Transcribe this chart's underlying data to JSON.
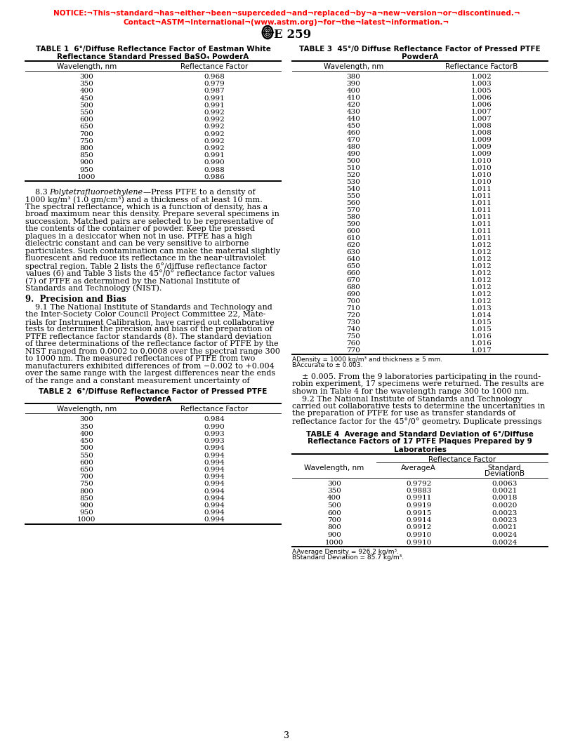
{
  "notice_line1": "NOTICE:¬This¬standard¬has¬either¬been¬superceded¬and¬replaced¬by¬a¬new¬version¬or¬discontinued.¬",
  "notice_line2": "Contact¬ASTM¬International¬(www.astm.org)¬for¬the¬latest¬information.¬",
  "header": "E 259",
  "page_number": "3",
  "table1_title_line1": "TABLE 1  6°/Diffuse Reflectance Factor of Eastman White",
  "table1_title_line2": "Reflectance Standard Pressed BaSO₄ PowderA",
  "table1_col1": "Wavelength, nm",
  "table1_col2": "Reflectance Factor",
  "table1_data": [
    [
      300,
      "0.968"
    ],
    [
      350,
      "0.979"
    ],
    [
      400,
      "0.987"
    ],
    [
      450,
      "0.991"
    ],
    [
      500,
      "0.991"
    ],
    [
      550,
      "0.992"
    ],
    [
      600,
      "0.992"
    ],
    [
      650,
      "0.992"
    ],
    [
      700,
      "0.992"
    ],
    [
      750,
      "0.992"
    ],
    [
      800,
      "0.992"
    ],
    [
      850,
      "0.991"
    ],
    [
      900,
      "0.990"
    ],
    [
      950,
      "0.988"
    ],
    [
      1000,
      "0.986"
    ]
  ],
  "table2_title_line1": "TABLE 2  6°/Diffuse Reflectance Factor of Pressed PTFE",
  "table2_title_line2": "PowderA",
  "table2_col1": "Wavelength, nm",
  "table2_col2": "Reflectance Factor",
  "table2_data": [
    [
      300,
      "0.984"
    ],
    [
      350,
      "0.990"
    ],
    [
      400,
      "0.993"
    ],
    [
      450,
      "0.993"
    ],
    [
      500,
      "0.994"
    ],
    [
      550,
      "0.994"
    ],
    [
      600,
      "0.994"
    ],
    [
      650,
      "0.994"
    ],
    [
      700,
      "0.994"
    ],
    [
      750,
      "0.994"
    ],
    [
      800,
      "0.994"
    ],
    [
      850,
      "0.994"
    ],
    [
      900,
      "0.994"
    ],
    [
      950,
      "0.994"
    ],
    [
      1000,
      "0.994"
    ]
  ],
  "table3_title_line1": "TABLE 3  45°/0 Diffuse Reflectance Factor of Pressed PTFE",
  "table3_title_line2": "PowderA",
  "table3_col1": "Wavelength, nm",
  "table3_col2": "Reflectance FactorB",
  "table3_data": [
    [
      380,
      "1.002"
    ],
    [
      390,
      "1.003"
    ],
    [
      400,
      "1.005"
    ],
    [
      410,
      "1.006"
    ],
    [
      420,
      "1.006"
    ],
    [
      430,
      "1.007"
    ],
    [
      440,
      "1.007"
    ],
    [
      450,
      "1.008"
    ],
    [
      460,
      "1.008"
    ],
    [
      470,
      "1.009"
    ],
    [
      480,
      "1.009"
    ],
    [
      490,
      "1.009"
    ],
    [
      500,
      "1.010"
    ],
    [
      510,
      "1.010"
    ],
    [
      520,
      "1.010"
    ],
    [
      530,
      "1.010"
    ],
    [
      540,
      "1.011"
    ],
    [
      550,
      "1.011"
    ],
    [
      560,
      "1.011"
    ],
    [
      570,
      "1.011"
    ],
    [
      580,
      "1.011"
    ],
    [
      590,
      "1.011"
    ],
    [
      600,
      "1.011"
    ],
    [
      610,
      "1.011"
    ],
    [
      620,
      "1.012"
    ],
    [
      630,
      "1.012"
    ],
    [
      640,
      "1.012"
    ],
    [
      650,
      "1.012"
    ],
    [
      660,
      "1.012"
    ],
    [
      670,
      "1.012"
    ],
    [
      680,
      "1.012"
    ],
    [
      690,
      "1.012"
    ],
    [
      700,
      "1.012"
    ],
    [
      710,
      "1.013"
    ],
    [
      720,
      "1.014"
    ],
    [
      730,
      "1.015"
    ],
    [
      740,
      "1.015"
    ],
    [
      750,
      "1.016"
    ],
    [
      760,
      "1.016"
    ],
    [
      770,
      "1.017"
    ]
  ],
  "table3_fn_a": "ADensity = 1000 kg/m³ and thickness ≥ 5 mm.",
  "table3_fn_b": "BAccurate to ± 0.003.",
  "table4_title_line1": "TABLE 4  Average and Standard Deviation of 6°/Diffuse",
  "table4_title_line2": "Reflectance Factors of 17 PTFE Plaques Prepared by 9",
  "table4_title_line3": "Laboratories",
  "table4_rf_header": "Reflectance Factor",
  "table4_col1": "Wavelength, nm",
  "table4_col2": "AverageA",
  "table4_col3_line1": "Standard",
  "table4_col3_line2": "DeviationB",
  "table4_data": [
    [
      300,
      "0.9792",
      "0.0063"
    ],
    [
      350,
      "0.9883",
      "0.0021"
    ],
    [
      400,
      "0.9911",
      "0.0018"
    ],
    [
      500,
      "0.9919",
      "0.0020"
    ],
    [
      600,
      "0.9915",
      "0.0023"
    ],
    [
      700,
      "0.9914",
      "0.0023"
    ],
    [
      800,
      "0.9912",
      "0.0021"
    ],
    [
      900,
      "0.9910",
      "0.0024"
    ],
    [
      1000,
      "0.9910",
      "0.0024"
    ]
  ],
  "table4_fn_a": "AAverage Density = 926.2 kg/m³.",
  "table4_fn_b": "BStandard Deviation = 85.7 kg/m³.",
  "sec83_para": [
    "    8.3  Polytetrafluoroethylene—Press PTFE to a density of",
    "1000 kg/m³ (1.0 gm/cm³) and a thickness of at least 10 mm.",
    "The spectral reflectance, which is a function of density, has a",
    "broad maximum near this density. Prepare several specimens in",
    "succession. Matched pairs are selected to be representative of",
    "the contents of the container of powder. Keep the pressed",
    "plaques in a desiccator when not in use. PTFE has a high",
    "dielectric constant and can be very sensitive to airborne",
    "particulates. Such contamination can make the material slightly",
    "fluorescent and reduce its reflectance in the near-ultraviolet",
    "spectral region. Table 2 lists the 6°/diffuse reflectance factor",
    "values (6) and Table 3 lists the 45°/0° reflectance factor values",
    "(7) of PTFE as determined by the National Institute of",
    "Standards and Technology (NIST)."
  ],
  "sec9_head": "9.  Precision and Bias",
  "sec91_para": [
    "    9.1 The National Institute of Standards and Technology and",
    "the Inter-Society Color Council Project Committee 22, Mate-",
    "rials for Instrument Calibration, have carried out collaborative",
    "tests to determine the precision and bias of the preparation of",
    "PTFE reflectance factor standards (8). The standard deviation",
    "of three determinations of the reflectance factor of PTFE by the",
    "NIST ranged from 0.0002 to 0.0008 over the spectral range 300",
    "to 1000 nm. The measured reflectances of PTFE from two",
    "manufacturers exhibited differences of from −0.002 to +0.004",
    "over the same range with the largest differences near the ends",
    "of the range and a constant measurement uncertainty of"
  ],
  "right_col_para": [
    "    ± 0.005. From the 9 laboratories participating in the round-",
    "robin experiment, 17 specimens were returned. The results are",
    "shown in Table 4 for the wavelength range 300 to 1000 nm.",
    "    9.2 The National Institute of Standards and Technology",
    "carried out collaborative tests to determine the uncertanities in",
    "the preparation of PTFE for use as transfer standards of",
    "reflectance factor for the 45°/0° geometry. Duplicate pressings"
  ]
}
